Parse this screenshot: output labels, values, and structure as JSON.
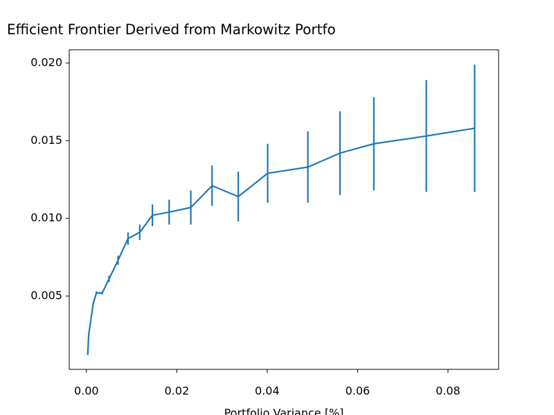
{
  "chart_data": {
    "type": "errorbar_line",
    "title": "Efficient Frontier Derived from Markowitz Portfo",
    "xlabel": "Portfolio Variance [%]",
    "x": [
      0.0003,
      0.0005,
      0.0015,
      0.0022,
      0.0035,
      0.005,
      0.007,
      0.0092,
      0.0118,
      0.0146,
      0.0183,
      0.0231,
      0.0278,
      0.0336,
      0.0401,
      0.049,
      0.0561,
      0.0636,
      0.0752,
      0.0859
    ],
    "series": [
      {
        "color": "#1f77b4",
        "values": [
          0.0013,
          0.0025,
          0.0045,
          0.0052,
          0.0052,
          0.0061,
          0.0073,
          0.0087,
          0.0091,
          0.0102,
          0.0104,
          0.0107,
          0.0121,
          0.0114,
          0.0129,
          0.0133,
          0.0142,
          0.0148,
          0.0153,
          0.0158
        ],
        "errors": [
          0.0001,
          0.0001,
          0.0001,
          0.0001,
          0.0001,
          0.0002,
          0.0003,
          0.0004,
          0.0005,
          0.0007,
          0.0008,
          0.0011,
          0.0013,
          0.0016,
          0.0019,
          0.0023,
          0.0027,
          0.003,
          0.0036,
          0.0041
        ]
      }
    ],
    "xlim": [
      -0.0038,
      0.0912
    ],
    "ylim": [
      0.00028,
      0.02085
    ],
    "xticks": [
      {
        "value": 0,
        "label": "0.00"
      },
      0.02,
      0.04,
      0.06,
      0.08
    ],
    "yticks": [
      0.005,
      {
        "value": 0.01,
        "label": "0.010"
      },
      0.015,
      {
        "value": 0.02,
        "label": "0.020"
      }
    ],
    "grid": false
  }
}
